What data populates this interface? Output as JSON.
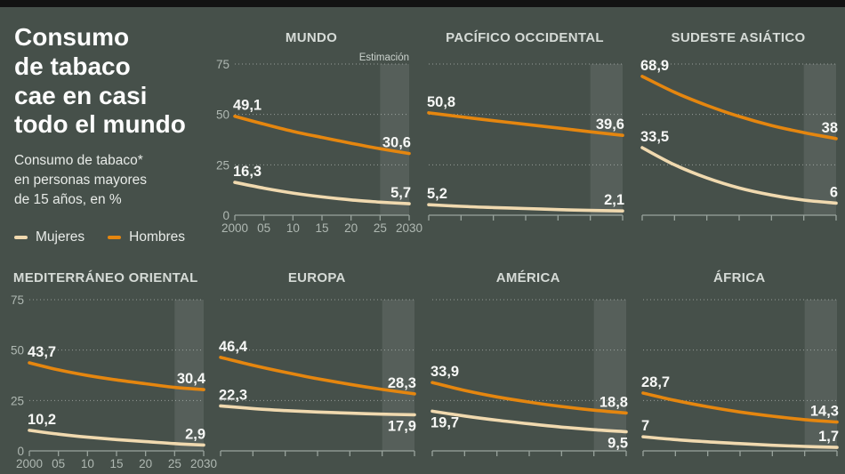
{
  "page": {
    "background": "#46504A",
    "topbar_color": "#121212"
  },
  "header": {
    "title": "Consumo\nde tabaco\ncae en casi\ntodo el mundo",
    "subtitle": "Consumo de tabaco*\nen personas mayores\nde 15 años, en %"
  },
  "legend": {
    "items": [
      {
        "label": "Mujeres",
        "color": "#F0D9AF"
      },
      {
        "label": "Hombres",
        "color": "#E5860F"
      }
    ]
  },
  "chart_data": {
    "type": "line",
    "x": [
      2000,
      2005,
      2010,
      2015,
      2020,
      2025,
      2030
    ],
    "x_tick_labels": [
      "2000",
      "05",
      "10",
      "15",
      "20",
      "25",
      "2030"
    ],
    "ylim": [
      0,
      75
    ],
    "y_ticks": [
      75,
      50,
      25,
      0
    ],
    "y_gridlines": [
      25,
      50,
      75
    ],
    "unit": "%",
    "estimation_label": "Estimación",
    "estimation_range": [
      2025,
      2030
    ],
    "estimation_band_color": "rgba(255,255,255,0.09)",
    "colors": {
      "Mujeres": "#F0D9AF",
      "Hombres": "#E5860F"
    },
    "charts": [
      {
        "title": "MUNDO",
        "show_y_labels": true,
        "show_x_labels": true,
        "show_estimation_label": true,
        "series": [
          {
            "name": "Hombres",
            "values": [
              49.1,
              45.2,
              41.6,
              38.6,
              35.7,
              33.0,
              30.6
            ],
            "start_label": "49,1",
            "end_label": "30,6",
            "start_label_pos": "above",
            "end_label_pos": "above"
          },
          {
            "name": "Mujeres",
            "values": [
              16.3,
              13.4,
              11.0,
              9.1,
              7.6,
              6.5,
              5.7
            ],
            "start_label": "16,3",
            "end_label": "5,7",
            "start_label_pos": "above",
            "end_label_pos": "above"
          }
        ]
      },
      {
        "title": "PACÍFICO OCCIDENTAL",
        "show_y_labels": false,
        "show_x_labels": false,
        "show_estimation_label": false,
        "series": [
          {
            "name": "Hombres",
            "values": [
              50.8,
              48.8,
              46.9,
              45.1,
              43.3,
              41.4,
              39.6
            ],
            "start_label": "50,8",
            "end_label": "39,6",
            "start_label_pos": "above",
            "end_label_pos": "above"
          },
          {
            "name": "Mujeres",
            "values": [
              5.2,
              4.4,
              3.8,
              3.3,
              2.8,
              2.4,
              2.1
            ],
            "start_label": "5,2",
            "end_label": "2,1",
            "start_label_pos": "above",
            "end_label_pos": "above"
          }
        ]
      },
      {
        "title": "SUDESTE ASIÁTICO",
        "show_y_labels": false,
        "show_x_labels": false,
        "show_estimation_label": false,
        "series": [
          {
            "name": "Hombres",
            "values": [
              68.9,
              61.0,
              54.5,
              49.0,
              44.5,
              41.0,
              38.0
            ],
            "start_label": "68,9",
            "end_label": "38",
            "start_label_pos": "above",
            "end_label_pos": "above"
          },
          {
            "name": "Mujeres",
            "values": [
              33.5,
              25.0,
              18.5,
              13.5,
              10.0,
              7.5,
              6.0
            ],
            "start_label": "33,5",
            "end_label": "6",
            "start_label_pos": "above",
            "end_label_pos": "above"
          }
        ]
      },
      {
        "title": "MEDITERRÁNEO ORIENTAL",
        "show_y_labels": true,
        "show_x_labels": true,
        "show_estimation_label": false,
        "series": [
          {
            "name": "Hombres",
            "values": [
              43.7,
              40.2,
              37.4,
              35.2,
              33.3,
              31.5,
              30.4
            ],
            "start_label": "43,7",
            "end_label": "30,4",
            "start_label_pos": "above",
            "end_label_pos": "above"
          },
          {
            "name": "Mujeres",
            "values": [
              10.2,
              8.3,
              6.8,
              5.6,
              4.6,
              3.6,
              2.9
            ],
            "start_label": "10,2",
            "end_label": "2,9",
            "start_label_pos": "above",
            "end_label_pos": "above"
          }
        ]
      },
      {
        "title": "EUROPA",
        "show_y_labels": false,
        "show_x_labels": false,
        "show_estimation_label": false,
        "series": [
          {
            "name": "Hombres",
            "values": [
              46.4,
              42.5,
              39.0,
              35.8,
              33.0,
              30.5,
              28.3
            ],
            "start_label": "46,4",
            "end_label": "28,3",
            "start_label_pos": "above",
            "end_label_pos": "above"
          },
          {
            "name": "Mujeres",
            "values": [
              22.3,
              21.0,
              20.0,
              19.3,
              18.7,
              18.2,
              17.9
            ],
            "start_label": "22,3",
            "end_label": "17,9",
            "start_label_pos": "above",
            "end_label_pos": "below"
          }
        ]
      },
      {
        "title": "AMÉRICA",
        "show_y_labels": false,
        "show_x_labels": false,
        "show_estimation_label": false,
        "series": [
          {
            "name": "Hombres",
            "values": [
              33.9,
              30.0,
              26.8,
              24.2,
              22.0,
              20.2,
              18.8
            ],
            "start_label": "33,9",
            "end_label": "18,8",
            "start_label_pos": "above",
            "end_label_pos": "above"
          },
          {
            "name": "Mujeres",
            "values": [
              19.7,
              17.3,
              15.2,
              13.4,
              11.8,
              10.5,
              9.5
            ],
            "start_label": "19,7",
            "end_label": "9,5",
            "start_label_pos": "below",
            "end_label_pos": "below"
          }
        ]
      },
      {
        "title": "ÁFRICA",
        "show_y_labels": false,
        "show_x_labels": false,
        "show_estimation_label": false,
        "series": [
          {
            "name": "Hombres",
            "values": [
              28.7,
              25.0,
              21.9,
              19.3,
              17.2,
              15.5,
              14.3
            ],
            "start_label": "28,7",
            "end_label": "14,3",
            "start_label_pos": "above",
            "end_label_pos": "above"
          },
          {
            "name": "Mujeres",
            "values": [
              7.0,
              5.6,
              4.5,
              3.6,
              2.8,
              2.2,
              1.7
            ],
            "start_label": "7",
            "end_label": "1,7",
            "start_label_pos": "above",
            "end_label_pos": "above"
          }
        ]
      }
    ]
  }
}
